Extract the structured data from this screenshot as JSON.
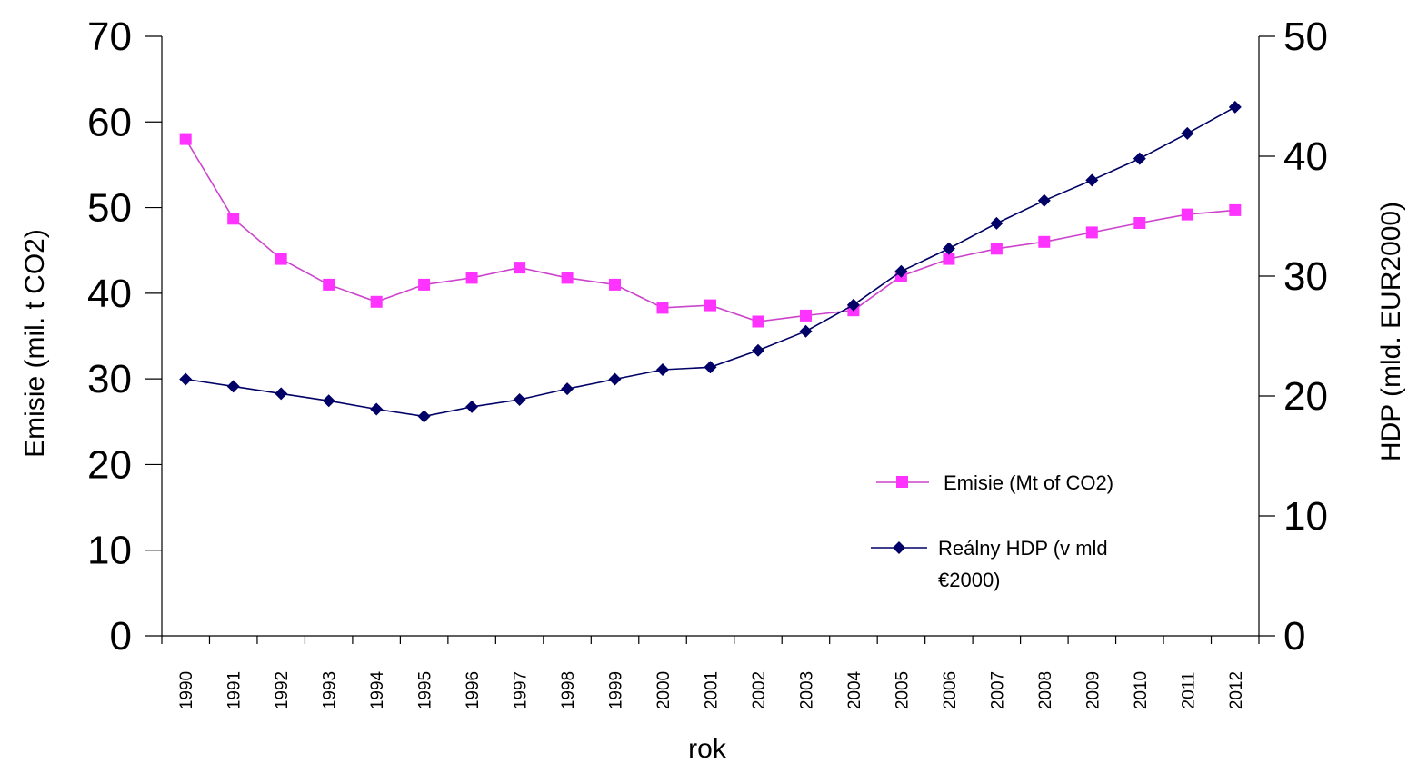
{
  "chart_data": {
    "type": "line",
    "x": [
      "1990",
      "1991",
      "1992",
      "1993",
      "1994",
      "1995",
      "1996",
      "1997",
      "1998",
      "1999",
      "2000",
      "2001",
      "2002",
      "2003",
      "2004",
      "2005",
      "2006",
      "2007",
      "2008",
      "2009",
      "2010",
      "2011",
      "2012"
    ],
    "xlabel": "rok",
    "ylabel_left": "Emisie (mil. t CO2)",
    "ylabel_right": "HDP (mld. EUR2000)",
    "ylim_left": [
      0,
      70
    ],
    "ylim_right": [
      0,
      50
    ],
    "yticks_left": [
      "0",
      "10",
      "20",
      "30",
      "40",
      "50",
      "60",
      "70"
    ],
    "yticks_right": [
      "0",
      "10",
      "20",
      "30",
      "40",
      "50"
    ],
    "grid": false,
    "legend_position": "lower-right",
    "series": [
      {
        "name": "Emisie (Mt of CO2)",
        "axis": "left",
        "color": "#ff33ff",
        "line_color": "#cc44cc",
        "marker": "square",
        "values": [
          58.0,
          48.7,
          44.0,
          41.0,
          39.0,
          41.0,
          41.8,
          43.0,
          41.8,
          41.0,
          38.3,
          38.6,
          36.7,
          37.4,
          38.0,
          42.0,
          44.0,
          45.2,
          46.0,
          47.1,
          48.2,
          49.2,
          49.7
        ]
      },
      {
        "name": "Reálny HDP (v mld €2000)",
        "legend_lines": [
          "Reálny HDP (v mld",
          "€2000)"
        ],
        "axis": "right",
        "color": "#000066",
        "line_color": "#000066",
        "marker": "diamond",
        "values": [
          21.4,
          20.8,
          20.2,
          19.6,
          18.9,
          18.3,
          19.1,
          19.7,
          20.6,
          21.4,
          22.2,
          22.4,
          23.8,
          25.4,
          27.6,
          30.4,
          32.3,
          34.4,
          36.3,
          38.0,
          39.8,
          41.9,
          44.1
        ]
      }
    ]
  }
}
